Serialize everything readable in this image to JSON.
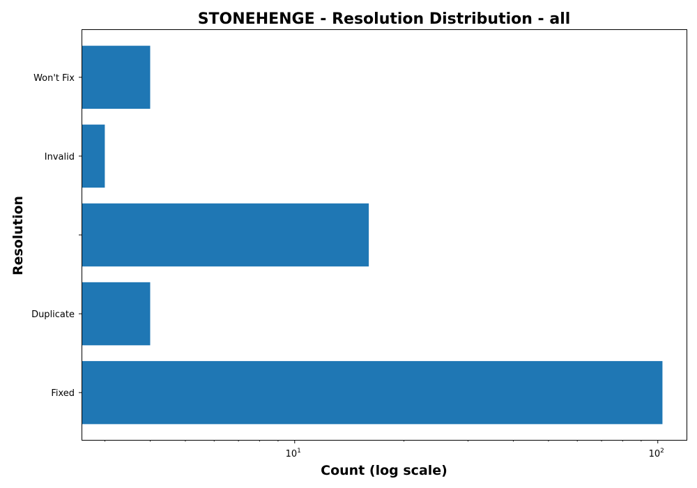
{
  "chart_data": {
    "type": "bar",
    "orientation": "horizontal",
    "title": "STONEHENGE - Resolution Distribution - all",
    "xlabel": "Count (log scale)",
    "ylabel": "Resolution",
    "x_scale": "log",
    "xlim": [
      2.6,
      120
    ],
    "x_ticks": [
      {
        "value": 10,
        "base": "10",
        "exp": "1"
      },
      {
        "value": 100,
        "base": "10",
        "exp": "2"
      }
    ],
    "categories": [
      "Fixed",
      "Duplicate",
      "",
      "Invalid",
      "Won't Fix"
    ],
    "values": [
      103,
      4,
      16,
      3,
      4
    ],
    "color": "#1f77b4",
    "grid": false,
    "legend": "none"
  }
}
